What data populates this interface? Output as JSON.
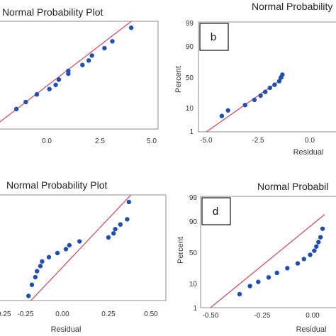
{
  "chart_data": [
    {
      "type": "scatter",
      "title": "Normal Probability Plot",
      "panel_label": "",
      "xlabel": "",
      "ylabel": "",
      "xlim": [
        -5.0,
        5.0
      ],
      "x_ticks": [
        "0.0",
        "2.5",
        "5.0"
      ],
      "y_ticks": [],
      "grid": false,
      "series": [
        {
          "x": [
            -4.8,
            -3.6,
            -3.0,
            -2.3,
            -1.5,
            -1.1,
            -0.9,
            -0.3,
            -0.3,
            0.6,
            1.0,
            1.2,
            2.0,
            2.5,
            3.7
          ],
          "y": [
            5,
            10,
            15,
            22,
            28,
            33,
            40,
            48,
            52,
            60,
            66,
            72,
            80,
            86,
            94
          ]
        }
      ],
      "fit_line": {
        "x": [
          -5.0,
          5.0
        ],
        "y": [
          3,
          99
        ]
      }
    },
    {
      "type": "scatter",
      "title": "Normal Probability Plot",
      "panel_label": "b",
      "xlabel": "Residual",
      "ylabel": "Percent",
      "xlim": [
        -5.0,
        5.0
      ],
      "x_ticks": [
        "-5.0",
        "-2.5",
        "0.0"
      ],
      "y_ticks": [
        "1",
        "10",
        "50",
        "90",
        "99"
      ],
      "grid": false,
      "series": [
        {
          "x": [
            -4.0,
            -3.6,
            -2.5,
            -1.9,
            -1.5,
            -1.2,
            -0.9,
            -0.6,
            -0.3,
            -0.2,
            -0.1
          ],
          "y": [
            5,
            8,
            12,
            17,
            22,
            27,
            33,
            38,
            44,
            50,
            55
          ]
        }
      ],
      "fit_line": {
        "x": [
          -5.0,
          0.0
        ],
        "y": [
          1,
          50
        ]
      }
    },
    {
      "type": "scatter",
      "title": "Normal Probability Plot",
      "panel_label": "",
      "xlabel": "Residual",
      "ylabel": "",
      "xlim": [
        -0.25,
        0.5
      ],
      "x_ticks": [
        "-0.25",
        "-0.25",
        "0.00",
        "0.25",
        "0.50"
      ],
      "y_ticks": [],
      "grid": false,
      "series": [
        {
          "x": [
            -0.22,
            -0.2,
            -0.18,
            -0.17,
            -0.15,
            -0.14,
            -0.1,
            -0.05,
            0.0,
            0.02,
            0.08,
            0.25,
            0.28,
            0.29,
            0.32,
            0.36,
            0.37
          ],
          "y": [
            5,
            10,
            15,
            20,
            25,
            30,
            35,
            40,
            45,
            50,
            55,
            60,
            65,
            70,
            75,
            80,
            92
          ]
        }
      ],
      "fit_line": {
        "x": [
          -0.25,
          0.5
        ],
        "y": [
          2,
          99
        ]
      }
    },
    {
      "type": "scatter",
      "title": "Normal Probabil",
      "panel_label": "d",
      "xlabel": "Residual",
      "ylabel": "Percent",
      "xlim": [
        -0.5,
        0.05
      ],
      "x_ticks": [
        "-0.50",
        "-0.25",
        "0.00"
      ],
      "y_ticks": [
        "1",
        "10",
        "50",
        "90",
        "99"
      ],
      "grid": false,
      "series": [
        {
          "x": [
            -0.36,
            -0.31,
            -0.27,
            -0.22,
            -0.18,
            -0.13,
            -0.08,
            -0.05,
            -0.02,
            0.0,
            0.01,
            0.02,
            0.03,
            0.04
          ],
          "y": [
            4,
            8,
            11,
            15,
            20,
            26,
            33,
            40,
            47,
            54,
            61,
            68,
            75,
            85
          ]
        }
      ],
      "fit_line": {
        "x": [
          -0.5,
          0.05
        ],
        "y": [
          1,
          95
        ]
      }
    }
  ],
  "colors": {
    "points": "#1f4fb0",
    "fit_line": "#d8435a",
    "frame": "#8f8f8f"
  }
}
